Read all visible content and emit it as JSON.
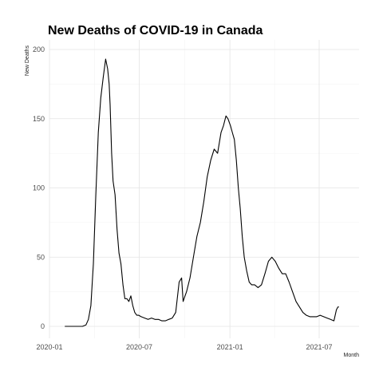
{
  "chart_data": {
    "type": "line",
    "title": "New Deaths of COVID-19 in Canada",
    "xlabel": "Month",
    "ylabel": "New Deaths",
    "x_ticks": [
      "2020-01",
      "2020-07",
      "2021-01",
      "2021-07"
    ],
    "y_ticks": [
      0,
      50,
      100,
      150,
      200
    ],
    "ylim": [
      0,
      200
    ],
    "xlim": [
      "2020-01-01",
      "2021-08-31"
    ],
    "grid": true,
    "legend": "none",
    "series": [
      {
        "x": [
          "2020-02-01",
          "2020-03-01",
          "2020-03-08",
          "2020-03-15",
          "2020-03-20",
          "2020-03-25",
          "2020-03-30",
          "2020-04-04",
          "2020-04-09",
          "2020-04-14",
          "2020-04-19",
          "2020-04-24",
          "2020-04-28",
          "2020-05-01",
          "2020-05-03",
          "2020-05-06",
          "2020-05-09",
          "2020-05-13",
          "2020-05-17",
          "2020-05-21",
          "2020-05-25",
          "2020-05-29",
          "2020-06-02",
          "2020-06-06",
          "2020-06-10",
          "2020-06-14",
          "2020-06-18",
          "2020-06-22",
          "2020-06-26",
          "2020-06-30",
          "2020-07-05",
          "2020-07-12",
          "2020-07-19",
          "2020-07-26",
          "2020-08-02",
          "2020-08-09",
          "2020-08-16",
          "2020-08-23",
          "2020-08-30",
          "2020-09-06",
          "2020-09-13",
          "2020-09-20",
          "2020-09-25",
          "2020-09-28",
          "2020-09-30",
          "2020-10-02",
          "2020-10-05",
          "2020-10-12",
          "2020-10-19",
          "2020-10-26",
          "2020-11-02",
          "2020-11-09",
          "2020-11-16",
          "2020-11-23",
          "2020-11-30",
          "2020-12-07",
          "2020-12-14",
          "2020-12-19",
          "2020-12-24",
          "2020-12-28",
          "2021-01-02",
          "2021-01-06",
          "2021-01-10",
          "2021-01-14",
          "2021-01-18",
          "2021-01-22",
          "2021-01-26",
          "2021-01-30",
          "2021-02-04",
          "2021-02-09",
          "2021-02-14",
          "2021-02-20",
          "2021-02-27",
          "2021-03-06",
          "2021-03-13",
          "2021-03-20",
          "2021-03-27",
          "2021-04-03",
          "2021-04-10",
          "2021-04-17",
          "2021-04-24",
          "2021-05-01",
          "2021-05-08",
          "2021-05-15",
          "2021-05-22",
          "2021-05-29",
          "2021-06-05",
          "2021-06-12",
          "2021-06-19",
          "2021-06-26",
          "2021-07-03",
          "2021-07-10",
          "2021-07-17",
          "2021-07-24",
          "2021-07-31",
          "2021-08-05",
          "2021-08-08",
          "2021-08-10"
        ],
        "y": [
          0,
          0,
          0,
          1,
          5,
          15,
          45,
          95,
          140,
          165,
          180,
          193,
          186,
          175,
          160,
          125,
          105,
          95,
          70,
          53,
          45,
          30,
          20,
          20,
          18,
          22,
          15,
          10,
          8,
          8,
          7,
          6,
          5,
          6,
          5,
          5,
          4,
          4,
          5,
          6,
          10,
          32,
          35,
          18,
          20,
          22,
          25,
          35,
          50,
          65,
          75,
          90,
          108,
          120,
          128,
          125,
          140,
          145,
          152,
          150,
          145,
          140,
          135,
          120,
          100,
          85,
          65,
          50,
          40,
          32,
          30,
          30,
          28,
          30,
          38,
          47,
          50,
          47,
          42,
          38,
          38,
          32,
          25,
          18,
          14,
          10,
          8,
          7,
          7,
          7,
          8,
          7,
          6,
          5,
          4,
          12,
          14,
          14
        ]
      }
    ]
  }
}
